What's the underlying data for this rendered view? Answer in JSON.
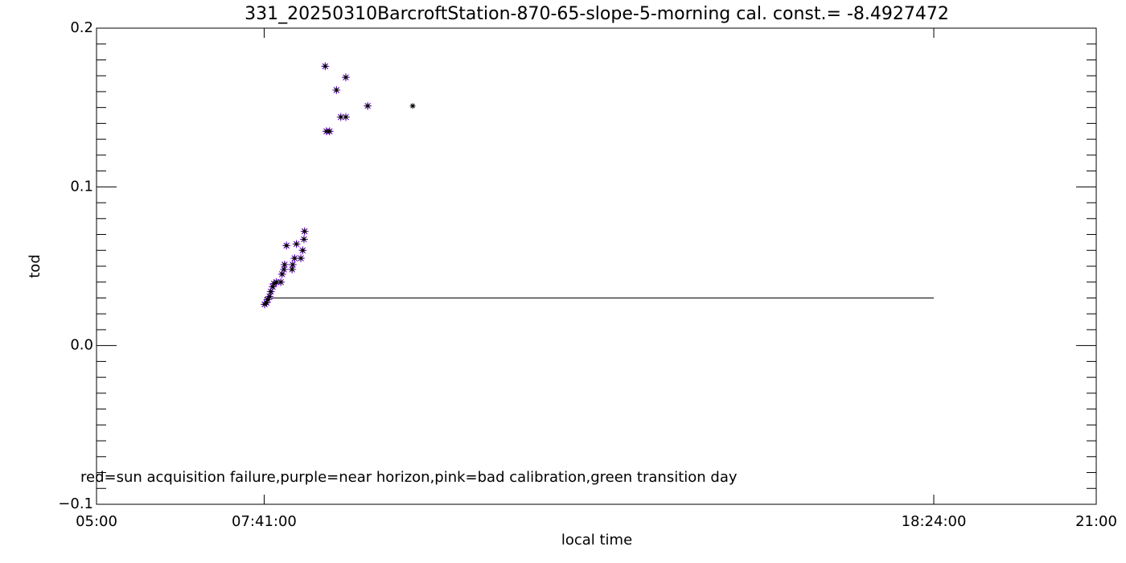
{
  "chart_data": {
    "type": "scatter",
    "title": "331_20250310BarcroftStation-870-65-slope-5-morning cal. const.= -8.4927472",
    "x_label": "local time",
    "y_label": "tod",
    "annotation": "red=sun acquisition failure,purple=near horizon,pink=bad calibration,green transition day",
    "xlim": [
      5,
      21
    ],
    "xticks": [
      {
        "value": 5,
        "label": "05:00"
      },
      {
        "value": 7.6833,
        "label": "07:41:00"
      },
      {
        "value": 18.4,
        "label": "18:24:00"
      },
      {
        "value": 21,
        "label": "21:00"
      }
    ],
    "ylim": [
      -0.1,
      0.2
    ],
    "yticks": [
      {
        "value": -0.1,
        "label": "−0.1"
      },
      {
        "value": 0,
        "label": "0.0"
      },
      0.1,
      0.2
    ],
    "y_minor_ticks_per_major": 10,
    "reference_line": {
      "color": "#000000",
      "x": [
        7.6833,
        18.4
      ],
      "values": [
        0.03,
        0.03
      ]
    },
    "series": [
      {
        "color": "#7f00ff",
        "marker_size": 5,
        "x": [
          7.69,
          7.72,
          7.74,
          7.77,
          7.79,
          7.82,
          7.84,
          7.88,
          7.95,
          7.97,
          8.0,
          8.01,
          8.04,
          8.13,
          8.14,
          8.17,
          8.2,
          8.27,
          8.3,
          8.32,
          8.33,
          8.66,
          8.68,
          8.73,
          8.84,
          8.91,
          8.99,
          8.99,
          9.34
        ],
        "values": [
          0.026,
          0.027,
          0.029,
          0.031,
          0.034,
          0.037,
          0.039,
          0.04,
          0.04,
          0.045,
          0.048,
          0.051,
          0.063,
          0.048,
          0.051,
          0.055,
          0.064,
          0.055,
          0.06,
          0.067,
          0.072,
          0.176,
          0.135,
          0.135,
          0.161,
          0.144,
          0.144,
          0.169,
          0.151
        ]
      },
      {
        "color": "#000000",
        "marker_size": 3.5,
        "x": [
          7.69,
          7.72,
          7.74,
          7.77,
          7.79,
          7.82,
          7.84,
          7.88,
          7.95,
          7.97,
          8.0,
          8.01,
          8.04,
          8.13,
          8.14,
          8.17,
          8.2,
          8.27,
          8.3,
          8.32,
          8.33,
          8.66,
          8.68,
          8.73,
          8.84,
          8.91,
          8.99,
          8.99,
          9.34,
          10.06
        ],
        "values": [
          0.026,
          0.027,
          0.029,
          0.031,
          0.034,
          0.037,
          0.039,
          0.04,
          0.04,
          0.045,
          0.048,
          0.051,
          0.063,
          0.048,
          0.051,
          0.055,
          0.064,
          0.055,
          0.06,
          0.067,
          0.072,
          0.176,
          0.135,
          0.135,
          0.161,
          0.144,
          0.144,
          0.169,
          0.151,
          0.151
        ]
      }
    ]
  }
}
